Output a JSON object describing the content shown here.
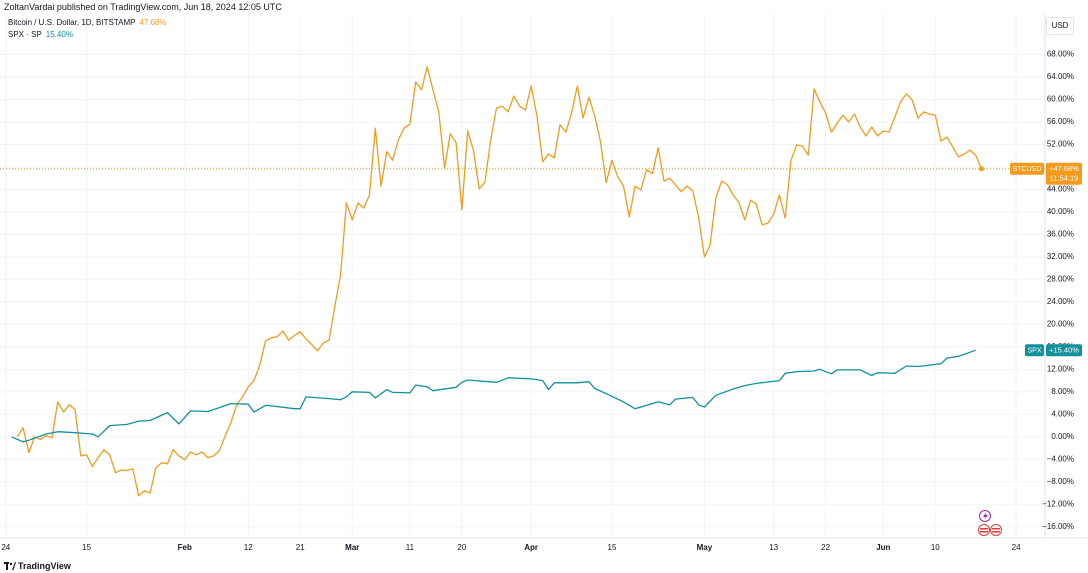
{
  "header": "ZoltanVardai published on TradingView.com, Jun 18, 2024 12:05 UTC",
  "currency": "USD",
  "watermark": "TradingView",
  "chart_data": {
    "type": "line",
    "grid": true,
    "xlim": [
      "2023-12-31",
      "2024-06-29"
    ],
    "ylim": [
      -18,
      75.2
    ],
    "xticks": [
      {
        "value": "2024-01-01",
        "label": "24"
      },
      {
        "value": "2024-01-15",
        "label": "15"
      },
      {
        "value": "2024-02-01",
        "label": "Feb"
      },
      {
        "value": "2024-02-12",
        "label": "12"
      },
      {
        "value": "2024-02-21",
        "label": "21"
      },
      {
        "value": "2024-03-01",
        "label": "Mar"
      },
      {
        "value": "2024-03-11",
        "label": "11"
      },
      {
        "value": "2024-03-20",
        "label": "20"
      },
      {
        "value": "2024-04-01",
        "label": "Apr"
      },
      {
        "value": "2024-04-15",
        "label": "15"
      },
      {
        "value": "2024-05-01",
        "label": "May"
      },
      {
        "value": "2024-05-13",
        "label": "13"
      },
      {
        "value": "2024-05-22",
        "label": "22"
      },
      {
        "value": "2024-06-01",
        "label": "Jun"
      },
      {
        "value": "2024-06-10",
        "label": "10"
      },
      {
        "value": "2024-06-24",
        "label": "24"
      }
    ],
    "yticks": [
      {
        "value": 68,
        "label": "68.00%"
      },
      {
        "value": 64,
        "label": "64.00%"
      },
      {
        "value": 60,
        "label": "60.00%"
      },
      {
        "value": 56,
        "label": "56.00%"
      },
      {
        "value": 52,
        "label": "52.00%"
      },
      {
        "value": 48,
        "label": "48.00%"
      },
      {
        "value": 44,
        "label": "44.00%"
      },
      {
        "value": 40,
        "label": "40.00%"
      },
      {
        "value": 36,
        "label": "36.00%"
      },
      {
        "value": 32,
        "label": "32.00%"
      },
      {
        "value": 28,
        "label": "28.00%"
      },
      {
        "value": 24,
        "label": "24.00%"
      },
      {
        "value": 20,
        "label": "20.00%"
      },
      {
        "value": 16,
        "label": "16.00%"
      },
      {
        "value": 12,
        "label": "12.00%"
      },
      {
        "value": 8,
        "label": "8.00%"
      },
      {
        "value": 4,
        "label": "4.00%"
      },
      {
        "value": 0,
        "label": "0.00%"
      },
      {
        "value": -4,
        "label": "−4.00%"
      },
      {
        "value": -8,
        "label": "−8.00%"
      },
      {
        "value": -12,
        "label": "−12.00%"
      },
      {
        "value": -16,
        "label": "−16.00%"
      }
    ],
    "series": [
      {
        "name": "Bitcoin / U.S. Dollar, 1D, BITSTAMP",
        "tag": "BTCUSD",
        "color": "#f59a1b",
        "legend_value": "47.68%",
        "axis_value": "+47.68%",
        "countdown": "11:54:19",
        "x": [
          "2024-01-03",
          "2024-01-04",
          "2024-01-05",
          "2024-01-06",
          "2024-01-07",
          "2024-01-08",
          "2024-01-09",
          "2024-01-10",
          "2024-01-11",
          "2024-01-12",
          "2024-01-13",
          "2024-01-14",
          "2024-01-15",
          "2024-01-16",
          "2024-01-17",
          "2024-01-18",
          "2024-01-19",
          "2024-01-20",
          "2024-01-21",
          "2024-01-22",
          "2024-01-23",
          "2024-01-24",
          "2024-01-25",
          "2024-01-26",
          "2024-01-27",
          "2024-01-28",
          "2024-01-29",
          "2024-01-30",
          "2024-01-31",
          "2024-02-01",
          "2024-02-02",
          "2024-02-03",
          "2024-02-04",
          "2024-02-05",
          "2024-02-06",
          "2024-02-07",
          "2024-02-08",
          "2024-02-09",
          "2024-02-10",
          "2024-02-11",
          "2024-02-12",
          "2024-02-13",
          "2024-02-14",
          "2024-02-15",
          "2024-02-16",
          "2024-02-17",
          "2024-02-18",
          "2024-02-19",
          "2024-02-20",
          "2024-02-21",
          "2024-02-22",
          "2024-02-23",
          "2024-02-24",
          "2024-02-25",
          "2024-02-26",
          "2024-02-27",
          "2024-02-28",
          "2024-02-29",
          "2024-03-01",
          "2024-03-02",
          "2024-03-03",
          "2024-03-04",
          "2024-03-05",
          "2024-03-06",
          "2024-03-07",
          "2024-03-08",
          "2024-03-09",
          "2024-03-10",
          "2024-03-11",
          "2024-03-12",
          "2024-03-13",
          "2024-03-14",
          "2024-03-15",
          "2024-03-16",
          "2024-03-17",
          "2024-03-18",
          "2024-03-19",
          "2024-03-20",
          "2024-03-21",
          "2024-03-22",
          "2024-03-23",
          "2024-03-24",
          "2024-03-25",
          "2024-03-26",
          "2024-03-27",
          "2024-03-28",
          "2024-03-29",
          "2024-03-30",
          "2024-03-31",
          "2024-04-01",
          "2024-04-02",
          "2024-04-03",
          "2024-04-04",
          "2024-04-05",
          "2024-04-06",
          "2024-04-07",
          "2024-04-08",
          "2024-04-09",
          "2024-04-10",
          "2024-04-11",
          "2024-04-12",
          "2024-04-13",
          "2024-04-14",
          "2024-04-15",
          "2024-04-16",
          "2024-04-17",
          "2024-04-18",
          "2024-04-19",
          "2024-04-20",
          "2024-04-21",
          "2024-04-22",
          "2024-04-23",
          "2024-04-24",
          "2024-04-25",
          "2024-04-26",
          "2024-04-27",
          "2024-04-28",
          "2024-04-29",
          "2024-04-30",
          "2024-05-01",
          "2024-05-02",
          "2024-05-03",
          "2024-05-04",
          "2024-05-05",
          "2024-05-06",
          "2024-05-07",
          "2024-05-08",
          "2024-05-09",
          "2024-05-10",
          "2024-05-11",
          "2024-05-12",
          "2024-05-13",
          "2024-05-14",
          "2024-05-15",
          "2024-05-16",
          "2024-05-17",
          "2024-05-18",
          "2024-05-19",
          "2024-05-20",
          "2024-05-21",
          "2024-05-22",
          "2024-05-23",
          "2024-05-24",
          "2024-05-25",
          "2024-05-26",
          "2024-05-27",
          "2024-05-28",
          "2024-05-29",
          "2024-05-30",
          "2024-05-31",
          "2024-06-01",
          "2024-06-02",
          "2024-06-03",
          "2024-06-04",
          "2024-06-05",
          "2024-06-06",
          "2024-06-07",
          "2024-06-08",
          "2024-06-09",
          "2024-06-10",
          "2024-06-11",
          "2024-06-12",
          "2024-06-13",
          "2024-06-14",
          "2024-06-15",
          "2024-06-16",
          "2024-06-17",
          "2024-06-18"
        ],
        "values": [
          0,
          1.6,
          -2.8,
          0,
          -0.5,
          0.2,
          -0.2,
          6.2,
          4.4,
          5.7,
          4.8,
          -3.4,
          -3.2,
          -5.3,
          -3.7,
          -2.3,
          -3.2,
          -6.4,
          -5.9,
          -6.0,
          -5.7,
          -10.5,
          -9.6,
          -10.0,
          -5.5,
          -4.6,
          -4.8,
          -2.3,
          -3.4,
          -4.1,
          -2.7,
          -3.2,
          -2.7,
          -3.7,
          -3.4,
          -2.5,
          0.2,
          2.5,
          5.7,
          7.1,
          8.9,
          10.0,
          12.8,
          17.1,
          17.6,
          17.8,
          18.8,
          17.2,
          18.0,
          18.7,
          17.4,
          16.4,
          15.3,
          16.7,
          17.2,
          23.3,
          28.8,
          41.6,
          38.6,
          41.6,
          40.7,
          43.0,
          54.9,
          44.6,
          50.7,
          49.2,
          52.8,
          54.9,
          55.6,
          63.1,
          61.7,
          65.8,
          61.7,
          57.8,
          47.8,
          53.9,
          52.3,
          40.4,
          54.4,
          51.0,
          44.1,
          45.3,
          52.8,
          58.5,
          58.8,
          57.8,
          60.6,
          58.8,
          58.1,
          62.4,
          57.1,
          48.9,
          50.3,
          49.6,
          55.5,
          54.2,
          57.6,
          62.4,
          56.7,
          60.4,
          57.1,
          52.6,
          45.2,
          49.2,
          46.2,
          44.6,
          39.1,
          44.6,
          43.9,
          47.5,
          46.8,
          51.4,
          45.5,
          46.0,
          44.8,
          43.6,
          44.6,
          43.7,
          39.1,
          32.0,
          34.1,
          42.5,
          45.5,
          44.8,
          43.0,
          41.6,
          38.6,
          42.1,
          41.4,
          37.7,
          38.0,
          39.6,
          43.0,
          38.9,
          49.2,
          51.9,
          51.7,
          50.1,
          61.9,
          59.6,
          57.6,
          54.2,
          55.8,
          57.2,
          56.0,
          57.4,
          55.1,
          53.5,
          55.1,
          53.5,
          54.4,
          54.2,
          56.9,
          59.6,
          61.0,
          59.9,
          56.7,
          57.8,
          57.4,
          57.2,
          52.6,
          53.3,
          51.6,
          49.8,
          50.3,
          51.0,
          50.1,
          47.68
        ]
      },
      {
        "name": "SPX · SP",
        "tag": "SPX",
        "color": "#12909c",
        "legend_value": "15.40%",
        "axis_value": "+15.40%",
        "x": [
          "2024-01-02",
          "2024-01-04",
          "2024-01-05",
          "2024-01-08",
          "2024-01-10",
          "2024-01-12",
          "2024-01-16",
          "2024-01-17",
          "2024-01-19",
          "2024-01-22",
          "2024-01-24",
          "2024-01-26",
          "2024-01-29",
          "2024-01-31",
          "2024-02-02",
          "2024-02-05",
          "2024-02-07",
          "2024-02-09",
          "2024-02-12",
          "2024-02-13",
          "2024-02-15",
          "2024-02-16",
          "2024-02-20",
          "2024-02-21",
          "2024-02-22",
          "2024-02-26",
          "2024-02-28",
          "2024-02-29",
          "2024-03-01",
          "2024-03-04",
          "2024-03-05",
          "2024-03-07",
          "2024-03-08",
          "2024-03-11",
          "2024-03-12",
          "2024-03-14",
          "2024-03-15",
          "2024-03-19",
          "2024-03-20",
          "2024-03-21",
          "2024-03-26",
          "2024-03-28",
          "2024-04-01",
          "2024-04-03",
          "2024-04-04",
          "2024-04-05",
          "2024-04-09",
          "2024-04-11",
          "2024-04-12",
          "2024-04-15",
          "2024-04-17",
          "2024-04-19",
          "2024-04-23",
          "2024-04-25",
          "2024-04-26",
          "2024-04-29",
          "2024-04-30",
          "2024-05-01",
          "2024-05-03",
          "2024-05-06",
          "2024-05-08",
          "2024-05-10",
          "2024-05-14",
          "2024-05-15",
          "2024-05-17",
          "2024-05-20",
          "2024-05-21",
          "2024-05-23",
          "2024-05-24",
          "2024-05-28",
          "2024-05-30",
          "2024-05-31",
          "2024-06-03",
          "2024-06-05",
          "2024-06-07",
          "2024-06-11",
          "2024-06-12",
          "2024-06-14",
          "2024-06-17"
        ],
        "values": [
          0,
          -0.9,
          -0.6,
          0.5,
          0.9,
          0.8,
          0.5,
          0,
          2.0,
          2.2,
          2.8,
          2.9,
          4.3,
          2.3,
          4.6,
          4.5,
          5.2,
          5.9,
          5.8,
          4.4,
          5.6,
          5.5,
          5.0,
          5.0,
          7.1,
          6.8,
          6.6,
          7.1,
          8.0,
          7.9,
          6.9,
          8.4,
          7.9,
          7.8,
          9.2,
          8.9,
          8.2,
          8.8,
          9.7,
          10.1,
          9.7,
          10.5,
          10.3,
          10.0,
          8.4,
          9.6,
          9.6,
          9.8,
          8.6,
          7.2,
          6.2,
          5.0,
          6.2,
          5.7,
          6.7,
          7.0,
          5.7,
          5.3,
          7.4,
          8.5,
          9.1,
          9.5,
          10.0,
          11.3,
          11.6,
          11.7,
          12.0,
          11.2,
          11.9,
          11.9,
          10.9,
          11.4,
          11.3,
          12.6,
          12.5,
          13.0,
          14.0,
          14.3,
          15.4
        ]
      }
    ]
  }
}
